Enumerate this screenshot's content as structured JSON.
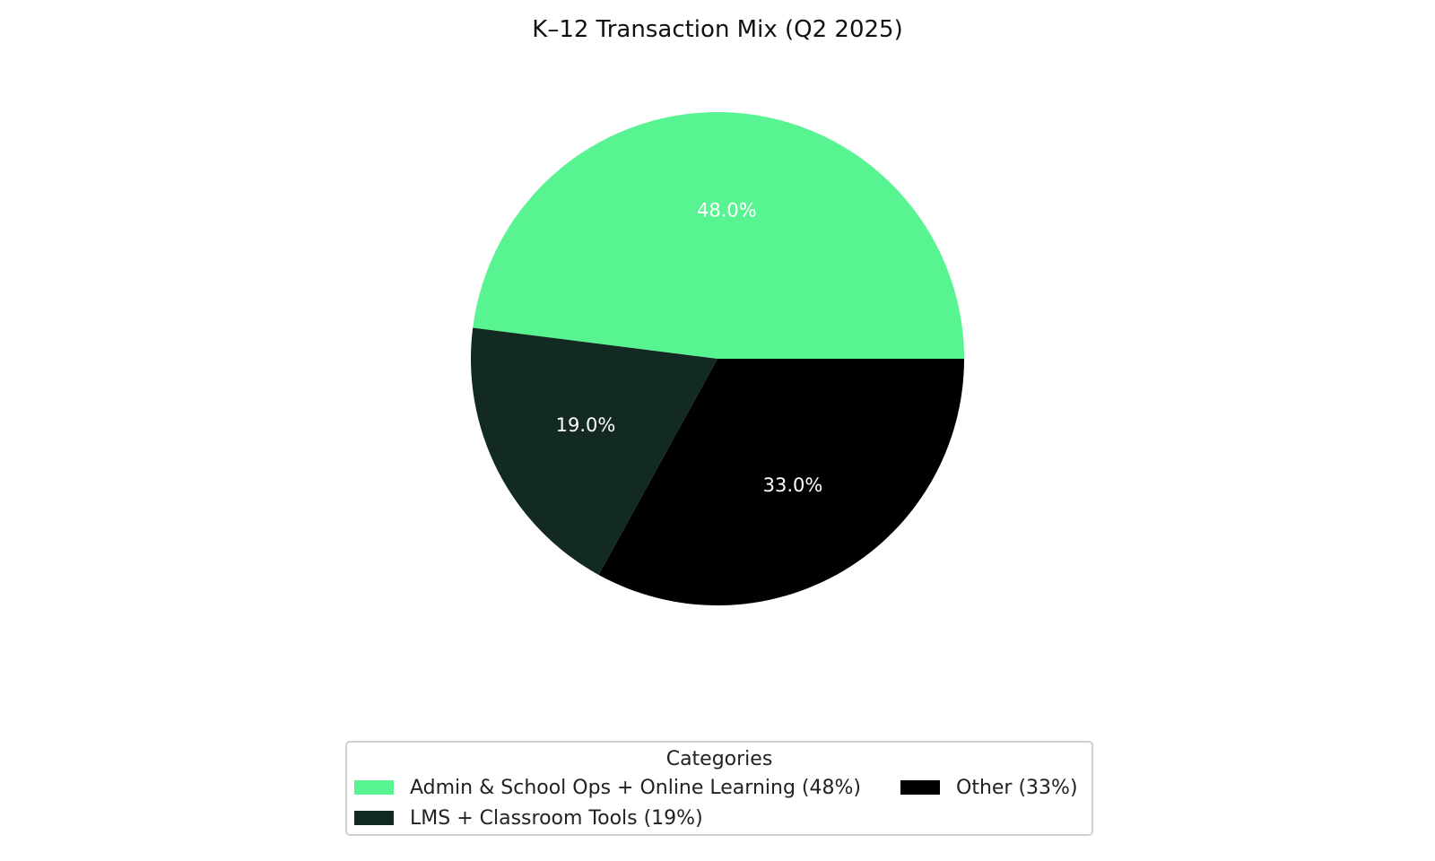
{
  "chart_data": {
    "type": "pie",
    "title": "K–12 Transaction Mix (Q2 2025)",
    "slices": [
      {
        "label": "Admin & School Ops + Online Learning (48%)",
        "value": 48.0,
        "pct_label": "48.0%",
        "color": "#57f491"
      },
      {
        "label": "LMS + Classroom Tools (19%)",
        "value": 19.0,
        "pct_label": "19.0%",
        "color": "#122a22"
      },
      {
        "label": "Other (33%)",
        "value": 33.0,
        "pct_label": "33.0%",
        "color": "#000000"
      }
    ],
    "start_angle_deg": 0,
    "direction": "counterclockwise",
    "legend": {
      "title": "Categories",
      "placement": "bottom-center",
      "columns": 2
    }
  }
}
